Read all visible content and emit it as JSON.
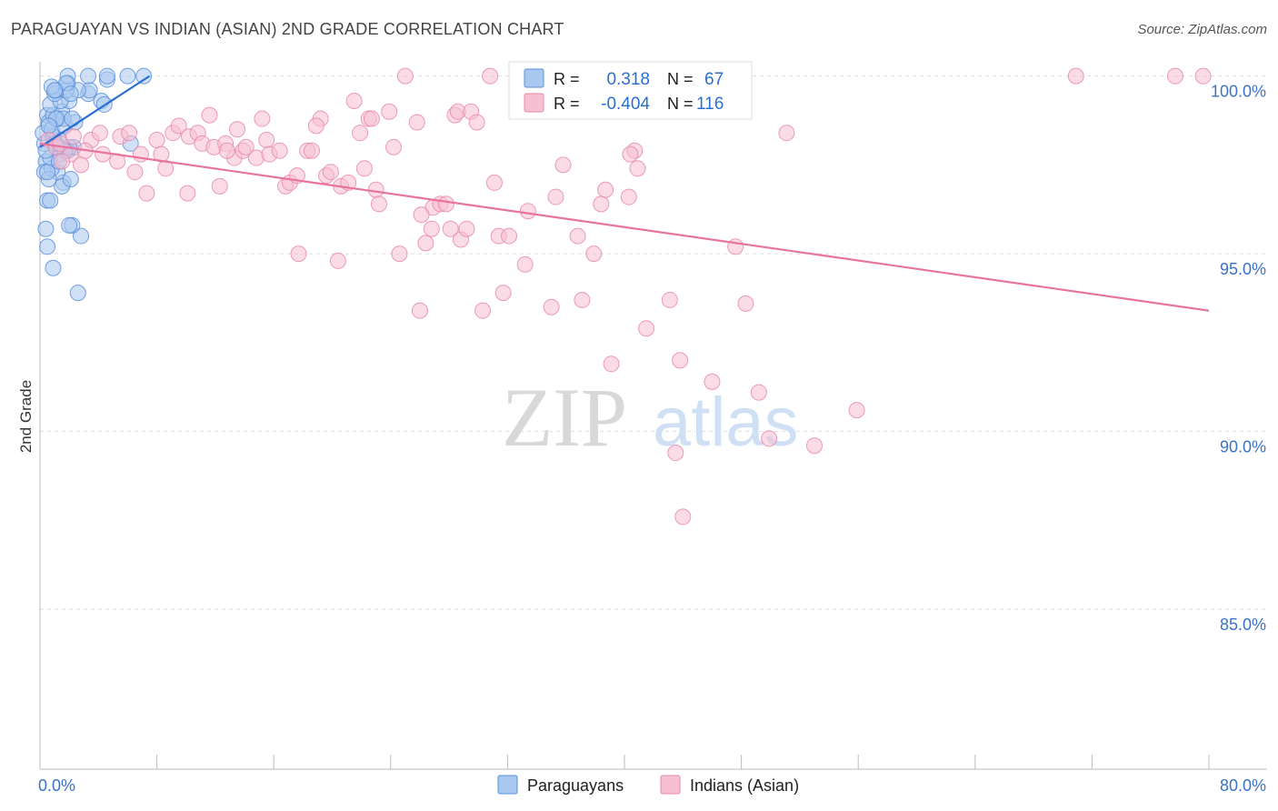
{
  "header": {
    "title": "PARAGUAYAN VS INDIAN (ASIAN) 2ND GRADE CORRELATION CHART",
    "source": "Source: ZipAtlas.com"
  },
  "watermark": {
    "zip": "ZIP",
    "atlas": "atlas"
  },
  "colors": {
    "blue_fill": "#a9c8f0",
    "blue_stroke": "#5a8fd8",
    "blue_line": "#2a6fd0",
    "pink_fill": "#f7c0d2",
    "pink_stroke": "#e88aac",
    "pink_line": "#e8739c",
    "tick_label": "#3a72c8",
    "grid": "#dddddd"
  },
  "chart_data": {
    "type": "scatter",
    "title": "PARAGUAYAN VS INDIAN (ASIAN) 2ND GRADE CORRELATION CHART",
    "ylabel": "2nd Grade",
    "xlabel": "",
    "xlim": [
      0,
      80
    ],
    "ylim": [
      80.5,
      100.4
    ],
    "x_tick_labels": [
      {
        "value": 0,
        "label": "0.0%"
      },
      {
        "value": 80,
        "label": "80.0%"
      }
    ],
    "y_ticks": [
      {
        "value": 100,
        "label": "100.0%"
      },
      {
        "value": 95,
        "label": "95.0%"
      },
      {
        "value": 90,
        "label": "90.0%"
      },
      {
        "value": 85,
        "label": "85.0%"
      }
    ],
    "legend_stats": [
      {
        "r_label": "R =",
        "r_value": "0.318",
        "n_label": "N =",
        "n_value": "67"
      },
      {
        "r_label": "R =",
        "r_value": "-0.404",
        "n_label": "N =",
        "n_value": "116"
      }
    ],
    "series": [
      {
        "name": "Paraguayans",
        "color": "blue",
        "trend": {
          "x0": 0.0,
          "y0": 98.0,
          "x1": 7.5,
          "y1": 100.0
        },
        "points": [
          [
            0.3,
            98.1
          ],
          [
            0.4,
            97.6
          ],
          [
            0.2,
            98.4
          ],
          [
            0.5,
            98.9
          ],
          [
            0.6,
            98.7
          ],
          [
            0.3,
            97.3
          ],
          [
            0.5,
            96.5
          ],
          [
            0.4,
            95.7
          ],
          [
            0.5,
            95.2
          ],
          [
            0.9,
            94.6
          ],
          [
            2.6,
            93.9
          ],
          [
            2.8,
            95.5
          ],
          [
            2.2,
            95.8
          ],
          [
            2.0,
            95.8
          ],
          [
            0.7,
            96.5
          ],
          [
            1.6,
            97.0
          ],
          [
            1.5,
            96.9
          ],
          [
            2.1,
            97.1
          ],
          [
            1.2,
            97.3
          ],
          [
            0.8,
            97.4
          ],
          [
            0.6,
            97.1
          ],
          [
            0.7,
            97.7
          ],
          [
            1.4,
            97.8
          ],
          [
            1.9,
            97.9
          ],
          [
            2.3,
            98.0
          ],
          [
            1.1,
            98.1
          ],
          [
            1.3,
            98.2
          ],
          [
            0.9,
            98.3
          ],
          [
            0.8,
            98.5
          ],
          [
            1.7,
            98.6
          ],
          [
            2.4,
            98.7
          ],
          [
            1.2,
            98.8
          ],
          [
            0.9,
            98.9
          ],
          [
            1.5,
            99.0
          ],
          [
            0.7,
            99.2
          ],
          [
            2.0,
            99.3
          ],
          [
            1.4,
            99.3
          ],
          [
            1.0,
            99.5
          ],
          [
            3.3,
            99.5
          ],
          [
            4.2,
            99.3
          ],
          [
            4.4,
            99.2
          ],
          [
            3.4,
            99.6
          ],
          [
            2.6,
            99.6
          ],
          [
            1.8,
            99.6
          ],
          [
            1.1,
            99.6
          ],
          [
            0.8,
            99.7
          ],
          [
            1.9,
            99.8
          ],
          [
            4.6,
            99.9
          ],
          [
            6.0,
            100.0
          ],
          [
            3.3,
            100.0
          ],
          [
            4.6,
            100.0
          ],
          [
            7.1,
            100.0
          ],
          [
            1.9,
            100.0
          ],
          [
            1.8,
            99.8
          ],
          [
            6.2,
            98.1
          ],
          [
            1.6,
            98.8
          ],
          [
            1.1,
            98.8
          ],
          [
            2.2,
            98.8
          ],
          [
            0.6,
            98.6
          ],
          [
            1.0,
            98.1
          ],
          [
            2.0,
            98.0
          ],
          [
            1.7,
            97.9
          ],
          [
            0.4,
            97.9
          ],
          [
            1.3,
            97.6
          ],
          [
            0.5,
            97.3
          ],
          [
            2.1,
            99.5
          ],
          [
            1.0,
            99.6
          ]
        ]
      },
      {
        "name": "Indians (Asian)",
        "color": "pink",
        "trend": {
          "x0": 0.0,
          "y0": 98.1,
          "x1": 80.0,
          "y1": 93.4
        },
        "points": [
          [
            0.6,
            98.2
          ],
          [
            1.1,
            98.0
          ],
          [
            1.4,
            98.1
          ],
          [
            2.1,
            97.8
          ],
          [
            2.8,
            97.5
          ],
          [
            3.5,
            98.2
          ],
          [
            4.1,
            98.4
          ],
          [
            4.3,
            97.8
          ],
          [
            5.3,
            97.6
          ],
          [
            5.5,
            98.3
          ],
          [
            6.1,
            98.4
          ],
          [
            6.5,
            97.3
          ],
          [
            6.9,
            97.8
          ],
          [
            7.3,
            96.7
          ],
          [
            8.0,
            98.2
          ],
          [
            8.3,
            97.8
          ],
          [
            8.6,
            97.4
          ],
          [
            9.1,
            98.4
          ],
          [
            9.5,
            98.6
          ],
          [
            10.2,
            98.3
          ],
          [
            10.1,
            96.7
          ],
          [
            10.8,
            98.4
          ],
          [
            11.1,
            98.1
          ],
          [
            11.6,
            98.9
          ],
          [
            11.9,
            98.0
          ],
          [
            12.3,
            96.9
          ],
          [
            12.7,
            98.1
          ],
          [
            13.3,
            97.7
          ],
          [
            13.5,
            98.5
          ],
          [
            13.9,
            97.9
          ],
          [
            14.8,
            97.7
          ],
          [
            15.2,
            98.8
          ],
          [
            15.5,
            98.2
          ],
          [
            15.7,
            97.8
          ],
          [
            16.4,
            97.9
          ],
          [
            16.8,
            96.9
          ],
          [
            17.1,
            97.0
          ],
          [
            17.6,
            97.2
          ],
          [
            17.7,
            95.0
          ],
          [
            18.3,
            97.9
          ],
          [
            18.6,
            97.9
          ],
          [
            19.2,
            98.8
          ],
          [
            19.6,
            97.2
          ],
          [
            19.9,
            97.3
          ],
          [
            20.4,
            94.8
          ],
          [
            20.6,
            96.9
          ],
          [
            21.1,
            97.0
          ],
          [
            21.5,
            99.3
          ],
          [
            21.9,
            98.4
          ],
          [
            22.5,
            98.8
          ],
          [
            22.7,
            98.8
          ],
          [
            23.0,
            96.8
          ],
          [
            23.2,
            96.4
          ],
          [
            23.9,
            99.0
          ],
          [
            24.2,
            98.0
          ],
          [
            24.6,
            95.0
          ],
          [
            25.0,
            100.0
          ],
          [
            25.8,
            98.7
          ],
          [
            26.0,
            93.4
          ],
          [
            26.4,
            95.3
          ],
          [
            26.8,
            95.7
          ],
          [
            26.9,
            96.3
          ],
          [
            27.4,
            96.4
          ],
          [
            27.8,
            96.4
          ],
          [
            28.1,
            95.7
          ],
          [
            28.4,
            98.9
          ],
          [
            28.6,
            99.0
          ],
          [
            28.8,
            95.4
          ],
          [
            29.2,
            95.7
          ],
          [
            29.5,
            99.0
          ],
          [
            30.3,
            93.4
          ],
          [
            30.8,
            100.0
          ],
          [
            31.1,
            97.0
          ],
          [
            31.4,
            95.5
          ],
          [
            31.7,
            93.9
          ],
          [
            32.1,
            95.5
          ],
          [
            33.2,
            94.7
          ],
          [
            33.4,
            96.2
          ],
          [
            35.0,
            93.5
          ],
          [
            35.3,
            96.6
          ],
          [
            35.8,
            97.5
          ],
          [
            36.8,
            95.5
          ],
          [
            37.1,
            93.7
          ],
          [
            37.9,
            95.0
          ],
          [
            38.4,
            96.4
          ],
          [
            38.7,
            96.8
          ],
          [
            39.1,
            91.9
          ],
          [
            40.3,
            96.6
          ],
          [
            40.7,
            97.9
          ],
          [
            40.9,
            97.4
          ],
          [
            41.5,
            92.9
          ],
          [
            43.1,
            93.7
          ],
          [
            43.8,
            92.0
          ],
          [
            43.5,
            89.4
          ],
          [
            44.0,
            87.6
          ],
          [
            46.0,
            91.4
          ],
          [
            47.6,
            95.2
          ],
          [
            48.3,
            93.6
          ],
          [
            49.2,
            91.1
          ],
          [
            49.9,
            89.8
          ],
          [
            51.1,
            98.4
          ],
          [
            53.0,
            89.6
          ],
          [
            55.9,
            90.6
          ],
          [
            70.9,
            100.0
          ],
          [
            77.7,
            100.0
          ],
          [
            79.6,
            100.0
          ],
          [
            40.4,
            97.8
          ],
          [
            1.5,
            97.6
          ],
          [
            2.3,
            98.3
          ],
          [
            3.1,
            97.9
          ],
          [
            12.8,
            97.9
          ],
          [
            14.1,
            98.0
          ],
          [
            18.9,
            98.6
          ],
          [
            22.2,
            97.4
          ],
          [
            26.1,
            96.1
          ],
          [
            29.9,
            98.7
          ]
        ]
      }
    ]
  }
}
